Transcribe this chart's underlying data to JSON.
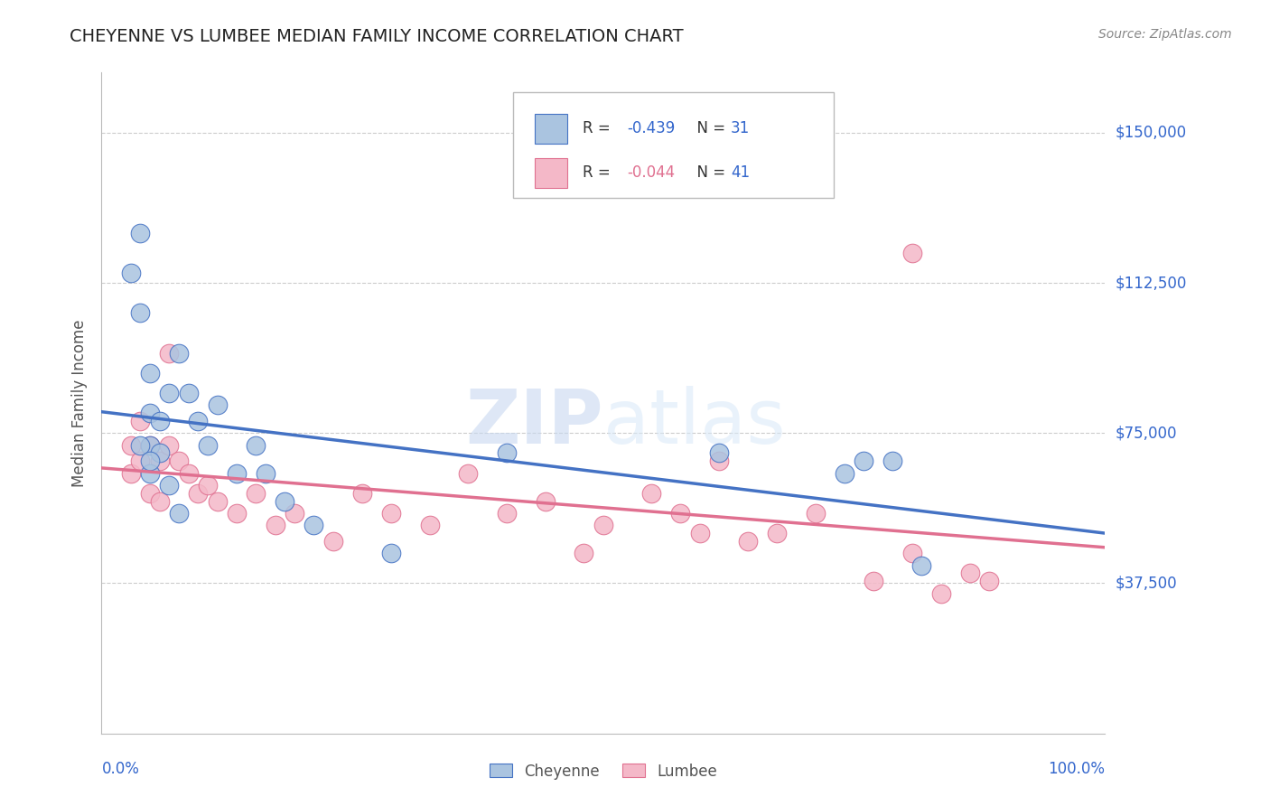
{
  "title": "CHEYENNE VS LUMBEE MEDIAN FAMILY INCOME CORRELATION CHART",
  "source": "Source: ZipAtlas.com",
  "ylabel": "Median Family Income",
  "ylim": [
    0,
    165000
  ],
  "xlim": [
    -0.02,
    1.02
  ],
  "r1": "-0.439",
  "n1": "31",
  "r2": "-0.044",
  "n2": "41",
  "cheyenne_color": "#aac4e0",
  "lumbee_color": "#f4b8c8",
  "line1_color": "#4472c4",
  "line2_color": "#e07090",
  "background_color": "#ffffff",
  "cheyenne_x": [
    0.01,
    0.02,
    0.02,
    0.03,
    0.03,
    0.03,
    0.03,
    0.04,
    0.04,
    0.05,
    0.06,
    0.07,
    0.08,
    0.09,
    0.1,
    0.12,
    0.14,
    0.15,
    0.17,
    0.2,
    0.28,
    0.4,
    0.62,
    0.75,
    0.77,
    0.8,
    0.83,
    0.02,
    0.03,
    0.05,
    0.06
  ],
  "cheyenne_y": [
    115000,
    125000,
    105000,
    90000,
    80000,
    72000,
    65000,
    78000,
    70000,
    85000,
    95000,
    85000,
    78000,
    72000,
    82000,
    65000,
    72000,
    65000,
    58000,
    52000,
    45000,
    70000,
    70000,
    65000,
    68000,
    68000,
    42000,
    72000,
    68000,
    62000,
    55000
  ],
  "lumbee_x": [
    0.01,
    0.01,
    0.02,
    0.02,
    0.03,
    0.03,
    0.04,
    0.04,
    0.05,
    0.05,
    0.06,
    0.07,
    0.08,
    0.09,
    0.1,
    0.12,
    0.14,
    0.16,
    0.18,
    0.22,
    0.25,
    0.28,
    0.32,
    0.36,
    0.4,
    0.44,
    0.48,
    0.5,
    0.55,
    0.58,
    0.6,
    0.62,
    0.65,
    0.68,
    0.72,
    0.78,
    0.82,
    0.85,
    0.88,
    0.9,
    0.82
  ],
  "lumbee_y": [
    72000,
    65000,
    78000,
    68000,
    72000,
    60000,
    68000,
    58000,
    95000,
    72000,
    68000,
    65000,
    60000,
    62000,
    58000,
    55000,
    60000,
    52000,
    55000,
    48000,
    60000,
    55000,
    52000,
    65000,
    55000,
    58000,
    45000,
    52000,
    60000,
    55000,
    50000,
    68000,
    48000,
    50000,
    55000,
    38000,
    45000,
    35000,
    40000,
    38000,
    120000
  ]
}
